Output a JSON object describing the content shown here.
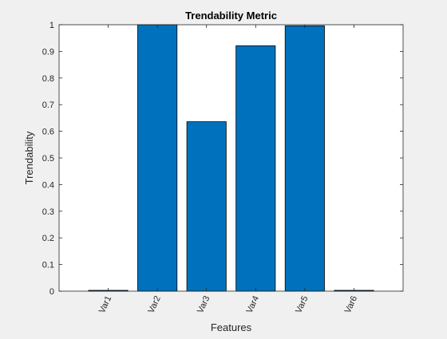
{
  "chart_data": {
    "type": "bar",
    "title": "Trendability Metric",
    "xlabel": "Features",
    "ylabel": "Trendability",
    "categories": [
      "Var1",
      "Var2",
      "Var3",
      "Var4",
      "Var5",
      "Var6"
    ],
    "values": [
      0.003,
      1.0,
      0.636,
      0.921,
      0.996,
      0.003
    ],
    "ylim": [
      0,
      1
    ],
    "yticks": [
      "0",
      "0.1",
      "0.2",
      "0.3",
      "0.4",
      "0.5",
      "0.6",
      "0.7",
      "0.8",
      "0.9",
      "1"
    ],
    "grid": false,
    "legend": "none",
    "bar_color": "#0072BD",
    "edge_color": "#000000"
  }
}
